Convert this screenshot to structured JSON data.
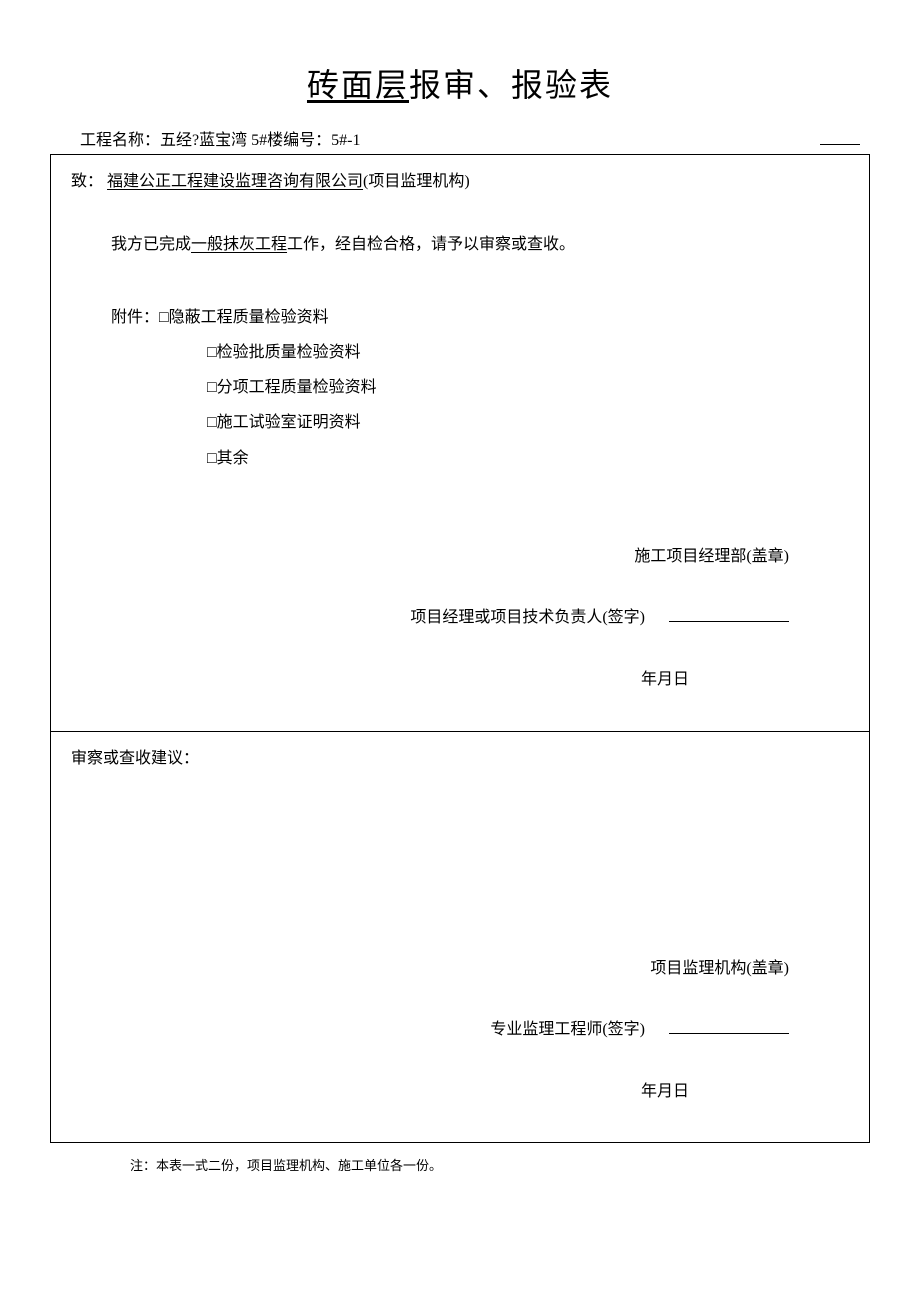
{
  "title": {
    "underlined_part": "砖面层",
    "rest": "报审、报验表"
  },
  "header": {
    "label_project": "工程名称：",
    "project_name": "五经?蓝宝湾 5#楼",
    "label_number": "编号：",
    "number": "5#-1"
  },
  "section1": {
    "to_label": "致：",
    "to_company": "福建公正工程建设监理咨询有限公司",
    "to_suffix": "(项目监理机构)",
    "body_prefix": "我方已完成",
    "body_underlined": "一般抹灰工程",
    "body_suffix": "工作，经自检合格，请予以审察或查收。",
    "attach_label": "附件：",
    "attachments": [
      "□隐蔽工程质量检验资料",
      "□检验批质量检验资料",
      "□分项工程质量检验资料",
      "□施工试验室证明资料",
      "□其余"
    ],
    "sig1": "施工项目经理部(盖章)",
    "sig2": "项目经理或项目技术负责人(签字)",
    "date": "年月日"
  },
  "section2": {
    "review_label": "审察或查收建议：",
    "sig1": "项目监理机构(盖章)",
    "sig2": "专业监理工程师(签字)",
    "date": "年月日"
  },
  "footnote": "注：本表一式二份，项目监理机构、施工单位各一份。"
}
